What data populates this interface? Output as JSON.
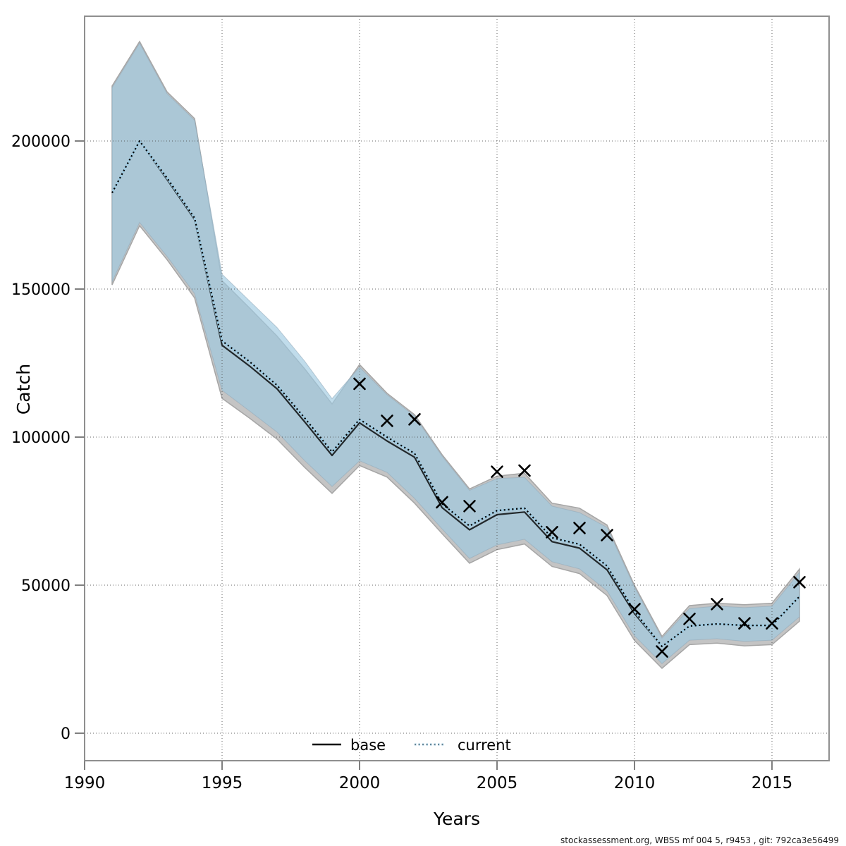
{
  "footer": {
    "text": "stockassessment.org, WBSS  mf  004  5, r9453 , git: 792ca3e56499"
  },
  "chart_data": {
    "type": "line",
    "title": "",
    "xlabel": "Years",
    "ylabel": "Catch",
    "grid": true,
    "xlim": [
      1990,
      2017.1
    ],
    "ylim": [
      -9300,
      242000
    ],
    "x_ticks": [
      1990,
      1995,
      2000,
      2005,
      2010,
      2015
    ],
    "y_ticks": [
      0,
      50000,
      100000,
      150000,
      200000
    ],
    "legend": {
      "position": "bottom-center-inside",
      "entries": [
        {
          "label": "base",
          "style": "solid-black"
        },
        {
          "label": "current",
          "style": "dotted-lightblue"
        }
      ]
    },
    "colors": {
      "frame": "#8f8f8f",
      "tick": "#7f7f7f",
      "grid": "#4a4a4a",
      "band_base_fill": "#c4c4c4",
      "band_base_stroke": "#a6a6a6",
      "band_current_fill": "#9ecae1",
      "band_current_opacity": 0.65,
      "line_base": "#000000",
      "line_current_under": "#9ecae1",
      "line_current_dots": "#000000",
      "marker": "#000000"
    },
    "years": [
      1991,
      1992,
      1993,
      1994,
      1995,
      1996,
      1997,
      1998,
      1999,
      2000,
      2001,
      2002,
      2003,
      2004,
      2005,
      2006,
      2007,
      2008,
      2009,
      2010,
      2011,
      2012,
      2013,
      2014,
      2015,
      2016
    ],
    "series": [
      {
        "name": "base",
        "values": [
          182500,
          200000,
          187000,
          173500,
          131000,
          124000,
          116300,
          105200,
          93800,
          104800,
          98700,
          93200,
          76200,
          68700,
          73800,
          74700,
          64700,
          62500,
          55200,
          40400,
          29300,
          36200,
          36900,
          36400,
          36400,
          46200
        ],
        "band_upper": [
          218600,
          233600,
          216600,
          207600,
          152800,
          143600,
          134100,
          123100,
          111200,
          124500,
          114800,
          107600,
          94100,
          82500,
          86800,
          87800,
          77700,
          76000,
          70300,
          49900,
          32700,
          43100,
          43900,
          43400,
          43900,
          55400
        ],
        "band_lower": [
          151400,
          171400,
          159900,
          147000,
          113100,
          106400,
          99300,
          89800,
          81000,
          90400,
          86500,
          77700,
          67400,
          57400,
          62000,
          63900,
          56300,
          53900,
          46500,
          31300,
          21900,
          29900,
          30400,
          29500,
          29900,
          37800
        ]
      },
      {
        "name": "current",
        "values": [
          182500,
          200000,
          187500,
          174000,
          132500,
          125500,
          117500,
          106500,
          95000,
          106000,
          100000,
          94500,
          77500,
          70000,
          75200,
          76000,
          66000,
          63800,
          56500,
          41200,
          29300,
          36200,
          36900,
          36400,
          36400,
          46200
        ],
        "band_upper": [
          218000,
          233000,
          216000,
          207000,
          155000,
          146000,
          137000,
          125700,
          113000,
          123600,
          114300,
          107100,
          93600,
          82000,
          86000,
          86400,
          76700,
          74500,
          69500,
          49300,
          32100,
          42100,
          42900,
          42400,
          42900,
          54300
        ],
        "band_lower": [
          152500,
          172500,
          161000,
          148500,
          115800,
          108800,
          101700,
          92100,
          83300,
          92000,
          88100,
          79300,
          69000,
          59000,
          63600,
          65500,
          57900,
          55500,
          48100,
          32900,
          23500,
          31400,
          31900,
          31000,
          31400,
          39300
        ]
      }
    ],
    "observed_catches": {
      "marker": "x",
      "years": [
        2000,
        2001,
        2002,
        2003,
        2004,
        2005,
        2006,
        2007,
        2008,
        2009,
        2010,
        2011,
        2012,
        2013,
        2014,
        2015,
        2016
      ],
      "values": [
        118000,
        105500,
        106000,
        78000,
        76700,
        88300,
        88700,
        67900,
        69300,
        66900,
        41900,
        27600,
        38600,
        43600,
        37100,
        37100,
        51000
      ]
    }
  }
}
